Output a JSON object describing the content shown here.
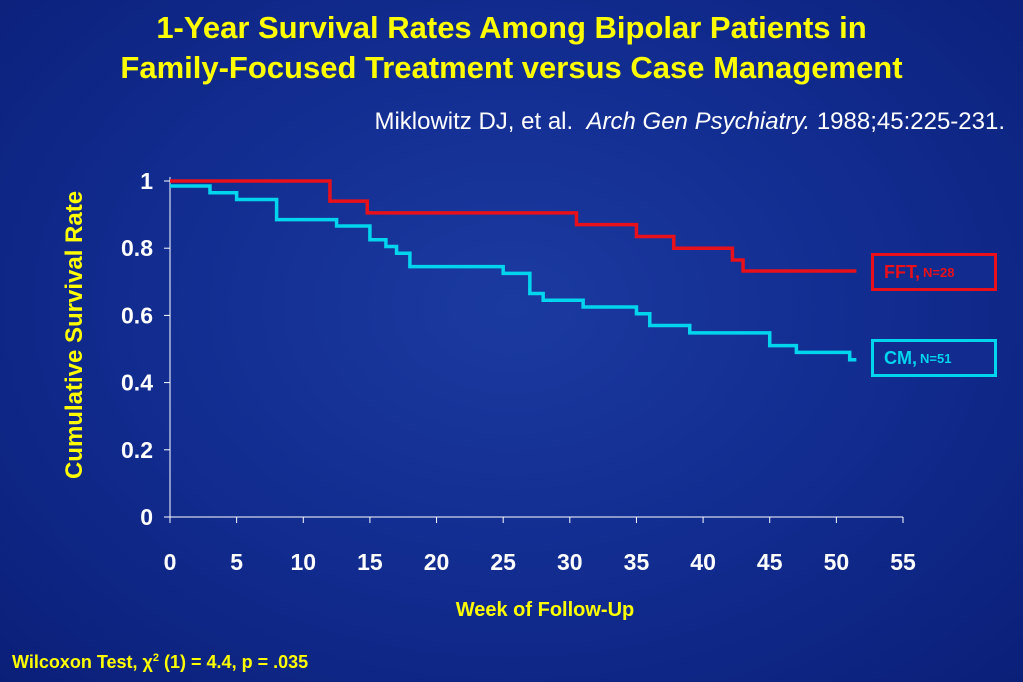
{
  "slide": {
    "title_line1": "1-Year Survival Rates Among Bipolar Patients in",
    "title_line2": "Family-Focused Treatment versus Case Management",
    "citation_authors": "Miklowitz DJ, et al.",
    "citation_journal": "Arch Gen Psychiatry.",
    "citation_details": "1988;45:225-231.",
    "footer_prefix": "Wilcoxon Test, ",
    "footer_chi": "χ",
    "footer_sup": "2",
    "footer_rest": " (1) = 4.4, p = .035"
  },
  "colors": {
    "background": "#112b8e",
    "title": "#ffff00",
    "fft": "#e8101a",
    "cm": "#00d5ee",
    "axis": "#ffffff"
  },
  "chart_data": {
    "type": "line",
    "subtype": "step",
    "xlabel": "Week of Follow-Up",
    "ylabel": "Cumulative Survival Rate",
    "xlim": [
      0,
      55
    ],
    "ylim": [
      0,
      1
    ],
    "x_ticks": [
      "0",
      "5",
      "10",
      "15",
      "20",
      "25",
      "30",
      "35",
      "40",
      "45",
      "50",
      "55"
    ],
    "y_ticks": [
      "0",
      "0.2",
      "0.4",
      "0.6",
      "0.8",
      "1"
    ],
    "legend_placement": "right",
    "series": [
      {
        "name": "FFT,",
        "n_label": "N=28",
        "color": "#e8101a",
        "steps": [
          [
            0,
            1.0
          ],
          [
            12,
            0.94
          ],
          [
            14.8,
            0.905
          ],
          [
            30.5,
            0.87
          ],
          [
            35,
            0.835
          ],
          [
            37.8,
            0.8
          ],
          [
            42.2,
            0.765
          ],
          [
            43,
            0.732
          ],
          [
            51.5,
            0.732
          ]
        ]
      },
      {
        "name": "CM,",
        "n_label": "N=51",
        "color": "#00d5ee",
        "steps": [
          [
            0,
            0.985
          ],
          [
            3,
            0.965
          ],
          [
            5,
            0.945
          ],
          [
            8,
            0.885
          ],
          [
            12.5,
            0.866
          ],
          [
            15,
            0.825
          ],
          [
            16.2,
            0.805
          ],
          [
            17,
            0.785
          ],
          [
            18,
            0.745
          ],
          [
            25,
            0.725
          ],
          [
            27,
            0.665
          ],
          [
            28,
            0.645
          ],
          [
            31,
            0.625
          ],
          [
            35,
            0.605
          ],
          [
            36,
            0.57
          ],
          [
            39,
            0.548
          ],
          [
            45,
            0.51
          ],
          [
            47,
            0.49
          ],
          [
            51,
            0.468
          ],
          [
            51.5,
            0.468
          ]
        ]
      }
    ]
  }
}
